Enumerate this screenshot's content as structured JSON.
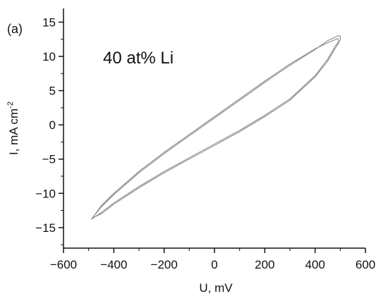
{
  "panel_label": "(a)",
  "chart_data": {
    "type": "line",
    "title": "",
    "annotation": "40 at% Li",
    "xlabel": "U, mV",
    "ylabel": "I, mA cm",
    "ylabel_sup": "-2",
    "xlim": [
      -600,
      600
    ],
    "ylim": [
      -18,
      17
    ],
    "xticks": [
      -600,
      -400,
      -200,
      0,
      200,
      400,
      600
    ],
    "xtick_labels": [
      "−600",
      "−400",
      "−200",
      "0",
      "200",
      "400",
      "600"
    ],
    "yticks": [
      -15,
      -10,
      -5,
      0,
      5,
      10,
      15
    ],
    "ytick_labels": [
      "−15",
      "−10",
      "−5",
      "0",
      "5",
      "10",
      "15"
    ],
    "grid": false,
    "line_color": "#8a8a8a",
    "series": [
      {
        "x": [
          -490,
          -450,
          -400,
          -300,
          -200,
          -100,
          0,
          100,
          200,
          300,
          400,
          450,
          490,
          500,
          500,
          480,
          450,
          400,
          300,
          200,
          100,
          0,
          -100,
          -200,
          -300,
          -400,
          -450,
          -490
        ],
        "y": [
          -13.8,
          -12.0,
          -10.2,
          -7.0,
          -4.2,
          -1.6,
          1.0,
          3.6,
          6.2,
          8.7,
          11.0,
          12.3,
          13.0,
          13.0,
          12.4,
          11.5,
          9.6,
          7.2,
          3.8,
          1.4,
          -0.8,
          -2.8,
          -4.8,
          -6.8,
          -9.0,
          -11.4,
          -12.8,
          -13.8
        ]
      },
      {
        "x": [
          -485,
          -450,
          -400,
          -300,
          -200,
          -100,
          0,
          100,
          200,
          300,
          400,
          450,
          490,
          495,
          480,
          450,
          400,
          300,
          200,
          100,
          0,
          -100,
          -200,
          -300,
          -400,
          -450,
          -485
        ],
        "y": [
          -13.6,
          -11.8,
          -10.0,
          -6.8,
          -4.0,
          -1.4,
          1.2,
          3.8,
          6.4,
          8.9,
          11.1,
          12.0,
          12.6,
          12.0,
          11.2,
          9.3,
          7.0,
          3.6,
          1.2,
          -1.0,
          -3.0,
          -5.0,
          -7.0,
          -9.2,
          -11.6,
          -13.0,
          -13.6
        ]
      }
    ]
  }
}
